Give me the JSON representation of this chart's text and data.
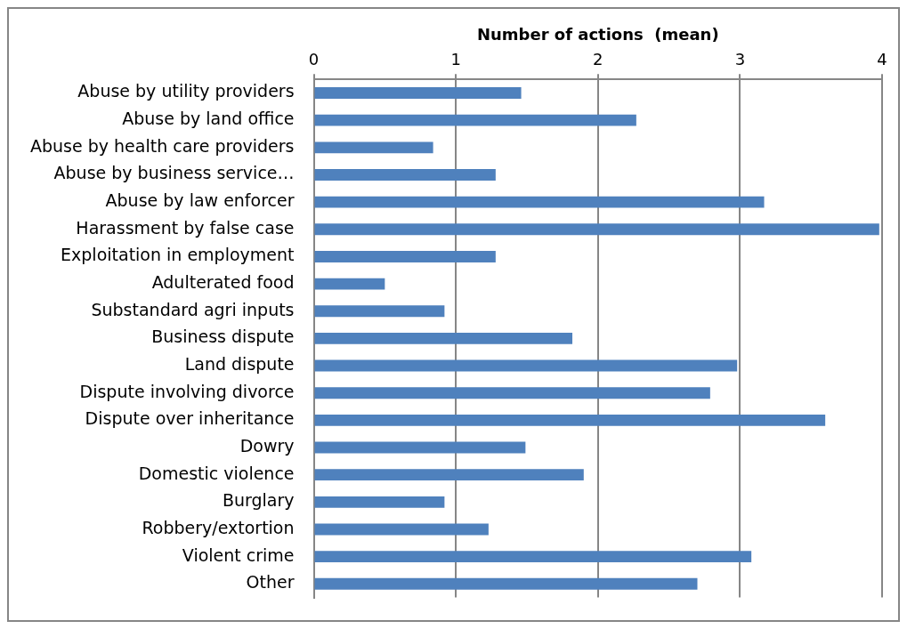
{
  "chart_data": {
    "type": "bar",
    "orientation": "horizontal",
    "xlabel": "Number of actions  (mean)",
    "categories": [
      "Abuse by utility providers",
      "Abuse by land office",
      "Abuse by health care providers",
      "Abuse by business service…",
      "Abuse by law enforcer",
      "Harassment by false case",
      "Exploitation in employment",
      "Adulterated food",
      "Substandard agri inputs",
      "Business dispute",
      "Land dispute",
      "Dispute involving divorce",
      "Dispute over inheritance",
      "Dowry",
      "Domestic violence",
      "Burglary",
      "Robbery/extortion",
      "Violent crime",
      "Other"
    ],
    "values": [
      1.46,
      2.27,
      0.84,
      1.28,
      3.17,
      3.98,
      1.28,
      0.5,
      0.92,
      1.82,
      2.98,
      2.79,
      3.6,
      1.49,
      1.9,
      0.92,
      1.23,
      3.08,
      2.7
    ],
    "color": "#4f81bd",
    "xlim": [
      0,
      4
    ],
    "xticks": [
      0,
      1,
      2,
      3,
      4
    ],
    "grid": "x",
    "legend": false
  }
}
